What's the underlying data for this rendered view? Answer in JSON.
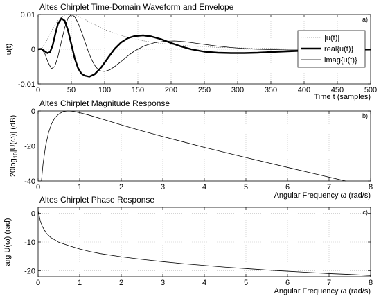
{
  "chart_data": [
    {
      "type": "line",
      "panel_tag": "a)",
      "title": "Altes Chirplet Time-Domain Waveform and Envelope",
      "xlabel": "Time t (samples)",
      "ylabel": "u(t)",
      "xlim": [
        0,
        500
      ],
      "ylim": [
        -0.01,
        0.01
      ],
      "xticks": [
        0,
        50,
        100,
        150,
        200,
        250,
        300,
        350,
        400,
        450,
        500
      ],
      "yticks": [
        -0.01,
        0,
        0.01
      ],
      "ytick_labels": [
        "-0.01",
        "0",
        "0.01"
      ],
      "grid": true,
      "legend_position": "top-right",
      "series": [
        {
          "name": "|u(t)|",
          "style": "dotted",
          "x": [
            0,
            6,
            12,
            18,
            24,
            30,
            36,
            42,
            48,
            54,
            60,
            70,
            80,
            90,
            100,
            115,
            130,
            145,
            160,
            180,
            200,
            225,
            250,
            275,
            300,
            325,
            350,
            375,
            400,
            425,
            450,
            475,
            500
          ],
          "y": [
            0.0,
            0.0004,
            0.0021,
            0.0044,
            0.0066,
            0.0083,
            0.0094,
            0.01,
            0.0101,
            0.0099,
            0.0095,
            0.0086,
            0.0076,
            0.0066,
            0.0057,
            0.0046,
            0.0037,
            0.003,
            0.0024,
            0.0018,
            0.0014,
            0.001,
            0.0007,
            0.0005,
            0.0004,
            0.0003,
            0.0002,
            0.00015,
            0.0001,
            8e-05,
            6e-05,
            4e-05,
            3e-05
          ]
        },
        {
          "name": "real{u(t)}",
          "style": "thick",
          "x": [
            0,
            5,
            10,
            14,
            18,
            22,
            26,
            30,
            35,
            40,
            45,
            50,
            55,
            60,
            65,
            70,
            77,
            85,
            95,
            105,
            115,
            125,
            135,
            145,
            158,
            170,
            185,
            200,
            215,
            230,
            250,
            270,
            290,
            310,
            330,
            350,
            375,
            400,
            425,
            450,
            475,
            500
          ],
          "y": [
            0.0,
            0.0001,
            -0.0006,
            -0.0011,
            -0.0008,
            0.0012,
            0.0045,
            0.0074,
            0.0089,
            0.0082,
            0.0054,
            0.0014,
            -0.0026,
            -0.0054,
            -0.007,
            -0.0076,
            -0.0079,
            -0.0072,
            -0.0052,
            -0.0025,
            0.0001,
            0.002,
            0.0032,
            0.0038,
            0.004,
            0.0037,
            0.0029,
            0.0018,
            0.0008,
            0.0,
            -0.0007,
            -0.001,
            -0.0011,
            -0.0011,
            -0.001,
            -0.0008,
            -0.0006,
            -0.0004,
            -0.0003,
            -0.0002,
            -0.0001,
            -5e-05
          ]
        },
        {
          "name": "imag{u(t)}",
          "style": "thin",
          "x": [
            0,
            5,
            10,
            15,
            20,
            25,
            30,
            35,
            40,
            45,
            50,
            55,
            60,
            65,
            70,
            75,
            80,
            85,
            90,
            95,
            100,
            108,
            115,
            125,
            135,
            145,
            160,
            175,
            190,
            205,
            220,
            235,
            250,
            270,
            290,
            310,
            330,
            350,
            375,
            400,
            425,
            450,
            475,
            500
          ],
          "y": [
            0.0,
            0.0,
            -0.0012,
            -0.0038,
            -0.0056,
            -0.005,
            -0.002,
            0.0022,
            0.0062,
            0.009,
            0.01,
            0.0094,
            0.0076,
            0.0052,
            0.0024,
            -0.0004,
            -0.0028,
            -0.0046,
            -0.0058,
            -0.0063,
            -0.0064,
            -0.0059,
            -0.005,
            -0.0035,
            -0.0019,
            -0.0005,
            0.001,
            0.0019,
            0.0023,
            0.0024,
            0.0022,
            0.0018,
            0.0014,
            0.0009,
            0.0005,
            0.0002,
            0.0,
            -0.0001,
            -0.0002,
            -0.0002,
            -0.0002,
            -0.0001,
            -0.0001,
            -5e-05
          ]
        }
      ]
    },
    {
      "type": "line",
      "panel_tag": "b)",
      "title": "Altes Chirplet Magnitude Response",
      "xlabel": "Angular Frequency ω (rad/s)",
      "ylabel": "20log10|U(ω)| (dB)",
      "ylabel_parts": [
        "20log",
        "10",
        "|U(ω)| (dB)"
      ],
      "xlim": [
        0,
        8
      ],
      "ylim": [
        -40,
        0
      ],
      "xticks": [
        0,
        1,
        2,
        3,
        4,
        5,
        6,
        7,
        8
      ],
      "yticks": [
        -40,
        -20,
        0
      ],
      "grid": true,
      "series": [
        {
          "x": [
            0.08,
            0.12,
            0.18,
            0.25,
            0.32,
            0.4,
            0.5,
            0.6,
            0.7,
            0.8,
            0.9,
            1.0,
            1.2,
            1.5,
            2.0,
            2.5,
            3.0,
            3.5,
            4.0,
            4.5,
            5.0,
            5.5,
            6.0,
            6.5,
            7.0,
            7.4
          ],
          "y": [
            -40,
            -30,
            -20,
            -12.5,
            -7.5,
            -4.0,
            -1.7,
            -0.4,
            0.0,
            -0.1,
            -0.5,
            -1.0,
            -2.2,
            -4.3,
            -7.9,
            -11.4,
            -14.6,
            -17.7,
            -20.8,
            -23.7,
            -26.6,
            -29.4,
            -32.2,
            -35.0,
            -37.8,
            -40.0
          ]
        }
      ]
    },
    {
      "type": "line",
      "panel_tag": "c)",
      "title": "Altes Chirplet Phase Response",
      "xlabel": "Angular Frequency ω (rad/s)",
      "ylabel": "arg U(ω) (rad)",
      "xlim": [
        0,
        8
      ],
      "ylim": [
        -22,
        2
      ],
      "xticks": [
        0,
        1,
        2,
        3,
        4,
        5,
        6,
        7,
        8
      ],
      "yticks": [
        -20,
        -10,
        0
      ],
      "grid": true,
      "series": [
        {
          "x": [
            0.0,
            0.02,
            0.05,
            0.1,
            0.2,
            0.3,
            0.5,
            0.75,
            1.0,
            1.25,
            1.5,
            2.0,
            2.5,
            3.0,
            3.5,
            4.0,
            4.5,
            5.0,
            5.5,
            6.0,
            6.5,
            7.0,
            7.5,
            8.0
          ],
          "y": [
            1.0,
            -0.5,
            -2.5,
            -4.6,
            -7.0,
            -8.4,
            -10.1,
            -11.3,
            -12.4,
            -13.3,
            -14.0,
            -15.1,
            -16.0,
            -16.8,
            -17.5,
            -18.1,
            -18.7,
            -19.2,
            -19.7,
            -20.1,
            -20.5,
            -20.9,
            -21.2,
            -21.6
          ]
        }
      ]
    }
  ]
}
